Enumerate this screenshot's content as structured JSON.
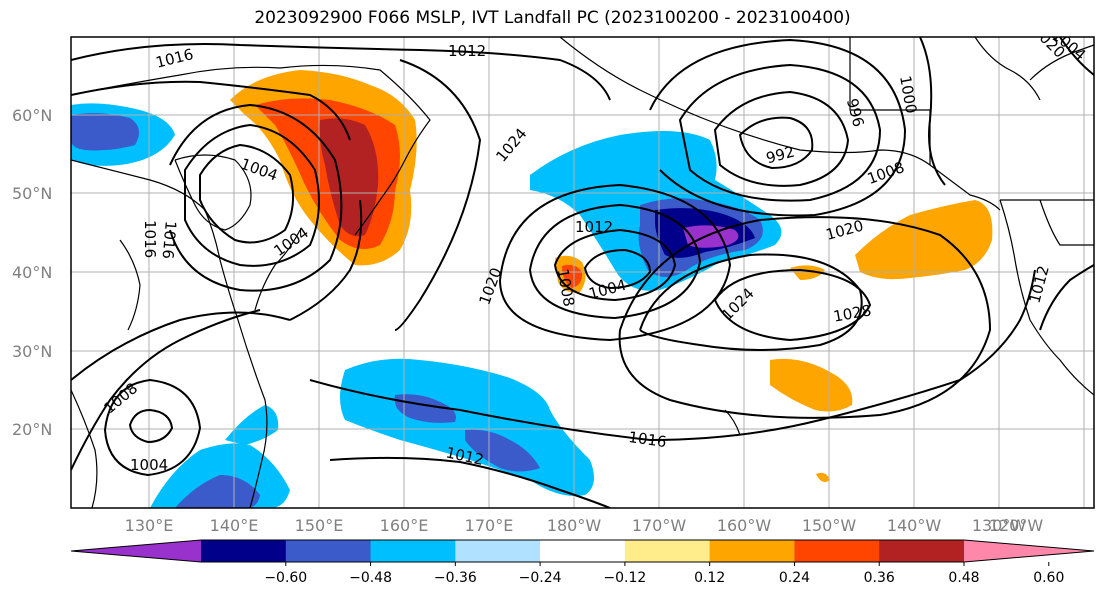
{
  "title": "2023092900 F066 MSLP, IVT Landfall PC (2023100200 - 2023100400)",
  "lat_labels": [
    "60°N",
    "50°N",
    "40°N",
    "30°N",
    "20°N"
  ],
  "lon_labels": [
    "130°E",
    "140°E",
    "150°E",
    "160°E",
    "170°E",
    "180°W",
    "170°W",
    "160°W",
    "150°W",
    "140°W",
    "130°W",
    "120°W"
  ],
  "isobar_labels": [
    "1016",
    "1012",
    "1004",
    "1000",
    "996",
    "992",
    "1008",
    "1024",
    "1004",
    "1004",
    "1016",
    "1016",
    "1012",
    "1020",
    "1004",
    "1008",
    "1024",
    "1020",
    "1028",
    "1016",
    "1012",
    "1008",
    "1004",
    "1020",
    "1012"
  ],
  "colorbar": {
    "colors": [
      "#9932CC",
      "#00008B",
      "#3A5BC9",
      "#00BFFF",
      "#B0E2FF",
      "#FFFFFF",
      "#FFEC8B",
      "#FFA500",
      "#FF4500",
      "#B22222",
      "#FF88AA"
    ],
    "ticks": [
      "−0.60",
      "−0.48",
      "−0.36",
      "−0.24",
      "−0.12",
      "0.12",
      "0.24",
      "0.36",
      "0.48",
      "0.60"
    ]
  }
}
